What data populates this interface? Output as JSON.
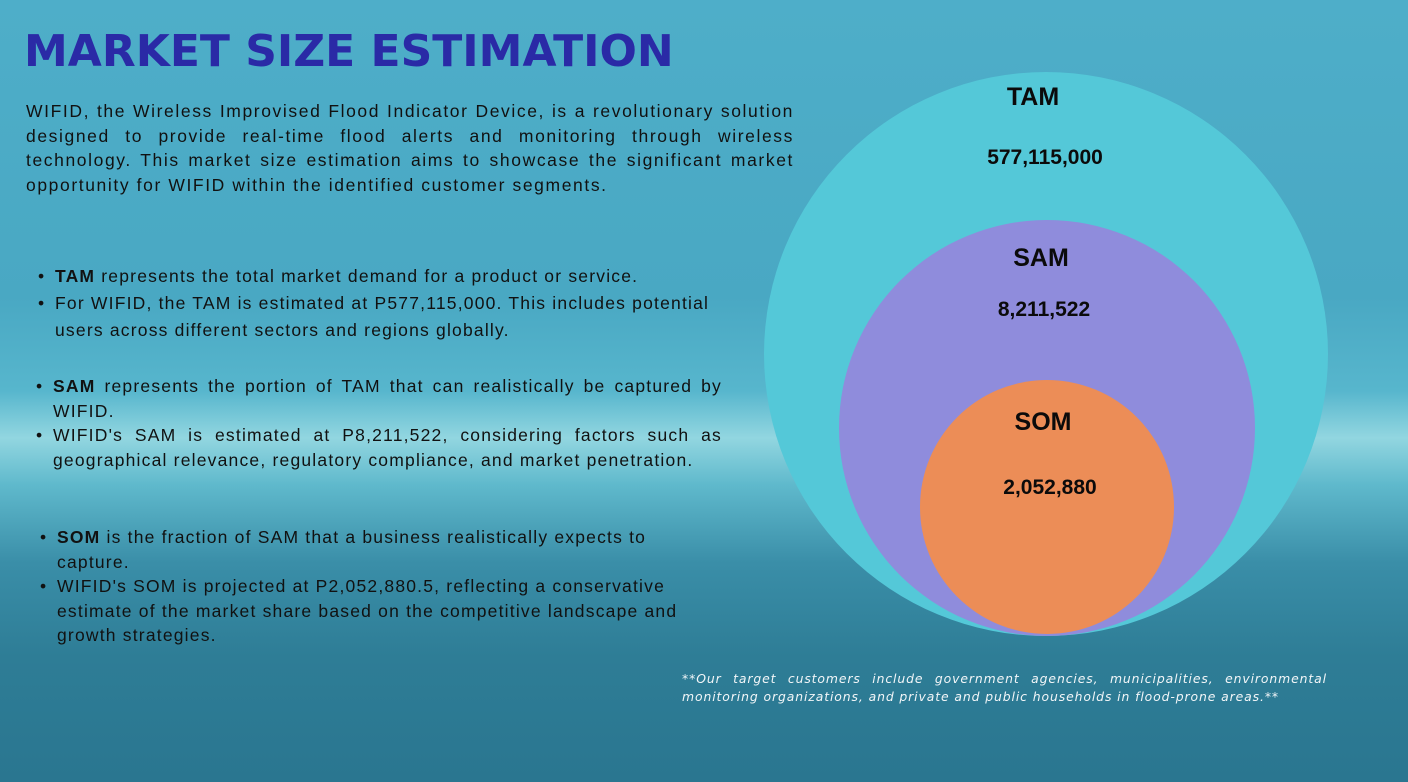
{
  "title": "MARKET SIZE ESTIMATION",
  "intro": "WIFID, the Wireless Improvised Flood Indicator Device, is a revolutionary solution designed to provide real-time flood alerts and monitoring through wireless technology. This market size estimation aims to showcase the significant market opportunity for WIFID within the identified customer segments.",
  "tam_section": {
    "term": "TAM",
    "definition": " represents the total market demand for a product or service.",
    "detail": "For WIFID, the TAM is estimated at P577,115,000. This includes potential users across different sectors and regions globally."
  },
  "sam_section": {
    "term": "SAM",
    "definition": " represents the portion of TAM that can realistically be captured by WIFID.",
    "detail": "WIFID's SAM is estimated at P8,211,522, considering factors such as geographical relevance, regulatory compliance, and market penetration."
  },
  "som_section": {
    "term": "SOM",
    "definition": " is the fraction of SAM that a business realistically expects to capture.",
    "detail": "WIFID's SOM is projected at P2,052,880.5, reflecting a conservative estimate of the market share based on the competitive landscape and growth strategies."
  },
  "diagram": {
    "tam": {
      "label": "TAM",
      "value": "577,115,000",
      "color": "#54c8d8"
    },
    "sam": {
      "label": "SAM",
      "value": "8,211,522",
      "color": "#8f8cdc"
    },
    "som": {
      "label": "SOM",
      "value": "2,052,880",
      "color": "#ec8d57"
    }
  },
  "footnote": "**Our target customers include government agencies, municipalities, environmental monitoring organizations, and private and public households in flood-prone areas.**",
  "colors": {
    "title": "#2a2aa6",
    "background_top": "#4eaec9",
    "background_bottom": "#2a7690"
  }
}
